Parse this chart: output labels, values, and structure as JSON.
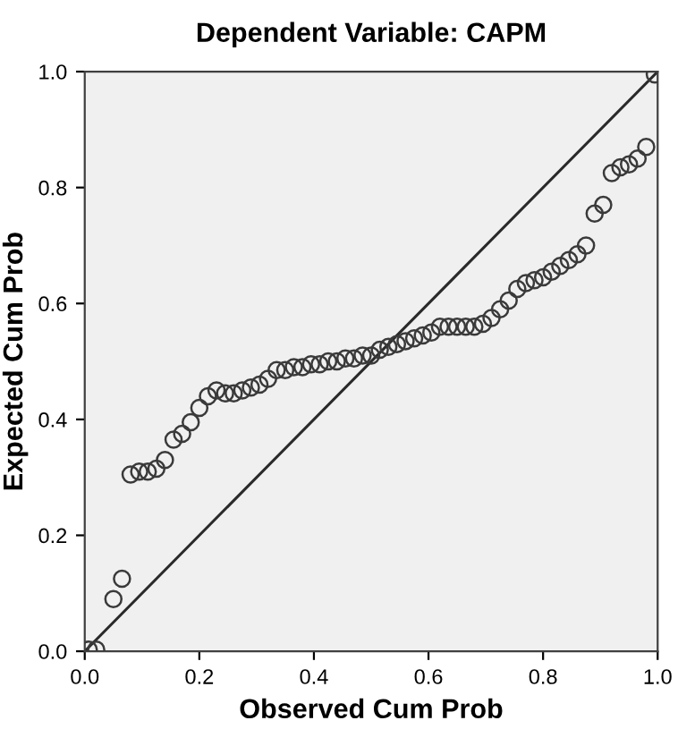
{
  "chart_data": {
    "type": "scatter",
    "title": "Dependent Variable: CAPM",
    "xlabel": "Observed Cum Prob",
    "ylabel": "Expected Cum Prob",
    "xlim": [
      0,
      1
    ],
    "ylim": [
      0,
      1
    ],
    "xticks": [
      {
        "value": 0,
        "label": "0.0"
      },
      0.2,
      0.4,
      0.6,
      0.8,
      {
        "value": 1,
        "label": "1.0"
      }
    ],
    "yticks": [
      {
        "value": 0,
        "label": "0.0"
      },
      0.2,
      0.4,
      0.6,
      0.8,
      {
        "value": 1,
        "label": "1.0"
      }
    ],
    "grid": false,
    "series": [
      {
        "marker": "circle",
        "color": "#3a3a3a",
        "x": [
          0.007,
          0.02,
          0.05,
          0.065,
          0.08,
          0.095,
          0.11,
          0.125,
          0.14,
          0.155,
          0.17,
          0.185,
          0.2,
          0.215,
          0.23,
          0.245,
          0.26,
          0.275,
          0.29,
          0.305,
          0.32,
          0.335,
          0.35,
          0.365,
          0.38,
          0.395,
          0.41,
          0.425,
          0.44,
          0.455,
          0.47,
          0.485,
          0.5,
          0.515,
          0.53,
          0.545,
          0.56,
          0.575,
          0.59,
          0.605,
          0.62,
          0.635,
          0.65,
          0.665,
          0.68,
          0.695,
          0.71,
          0.725,
          0.74,
          0.755,
          0.77,
          0.785,
          0.8,
          0.815,
          0.83,
          0.845,
          0.86,
          0.875,
          0.89,
          0.905,
          0.92,
          0.935,
          0.95,
          0.965,
          0.98,
          0.995
        ],
        "values": [
          0.003,
          0.003,
          0.09,
          0.125,
          0.305,
          0.31,
          0.31,
          0.315,
          0.33,
          0.365,
          0.375,
          0.395,
          0.42,
          0.44,
          0.45,
          0.445,
          0.445,
          0.45,
          0.455,
          0.46,
          0.47,
          0.485,
          0.485,
          0.49,
          0.49,
          0.495,
          0.495,
          0.5,
          0.5,
          0.505,
          0.505,
          0.51,
          0.51,
          0.52,
          0.525,
          0.53,
          0.535,
          0.54,
          0.545,
          0.55,
          0.56,
          0.56,
          0.56,
          0.56,
          0.56,
          0.565,
          0.575,
          0.59,
          0.605,
          0.625,
          0.635,
          0.64,
          0.645,
          0.655,
          0.665,
          0.675,
          0.685,
          0.7,
          0.755,
          0.77,
          0.825,
          0.835,
          0.84,
          0.85,
          0.87,
          0.995
        ]
      },
      {
        "type": "line",
        "color": "#2a2a2a",
        "x": [
          0,
          1
        ],
        "values": [
          0,
          1
        ]
      }
    ]
  }
}
